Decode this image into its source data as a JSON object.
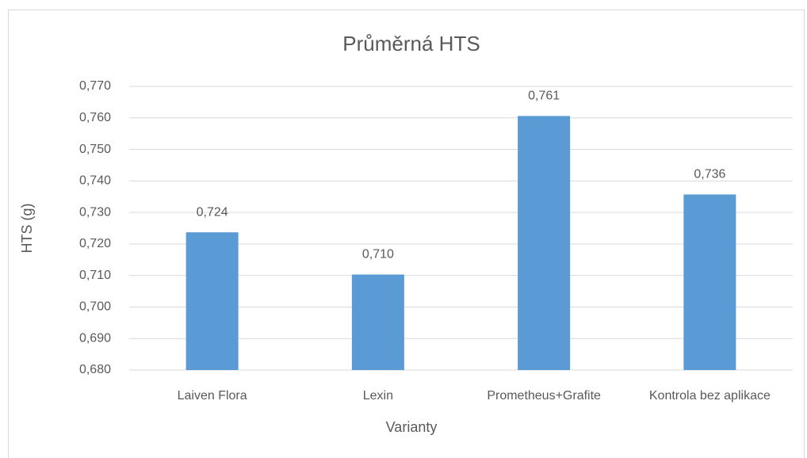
{
  "chart_data": {
    "type": "bar",
    "title": "Průměrná HTS",
    "x_label": "Varianty",
    "y_label": "HTS (g)",
    "categories": [
      "Laiven Flora",
      "Lexin",
      "Prometheus+Grafite",
      "Kontrola bez aplikace"
    ],
    "values": [
      0.7237,
      0.7103,
      0.7606,
      0.7357
    ],
    "value_labels": [
      "0,724",
      "0,710",
      "0,761",
      "0,736"
    ],
    "color": "#5b9bd5",
    "ylim": [
      0.68,
      0.77
    ],
    "yticks": [
      {
        "value": 0.68,
        "label": "0,680"
      },
      {
        "value": 0.69,
        "label": "0,690"
      },
      {
        "value": 0.7,
        "label": "0,700"
      },
      {
        "value": 0.71,
        "label": "0,710"
      },
      {
        "value": 0.72,
        "label": "0,720"
      },
      {
        "value": 0.73,
        "label": "0,730"
      },
      {
        "value": 0.74,
        "label": "0,740"
      },
      {
        "value": 0.75,
        "label": "0,750"
      },
      {
        "value": 0.76,
        "label": "0,760"
      },
      {
        "value": 0.77,
        "label": "0,770"
      }
    ],
    "grid": true
  }
}
